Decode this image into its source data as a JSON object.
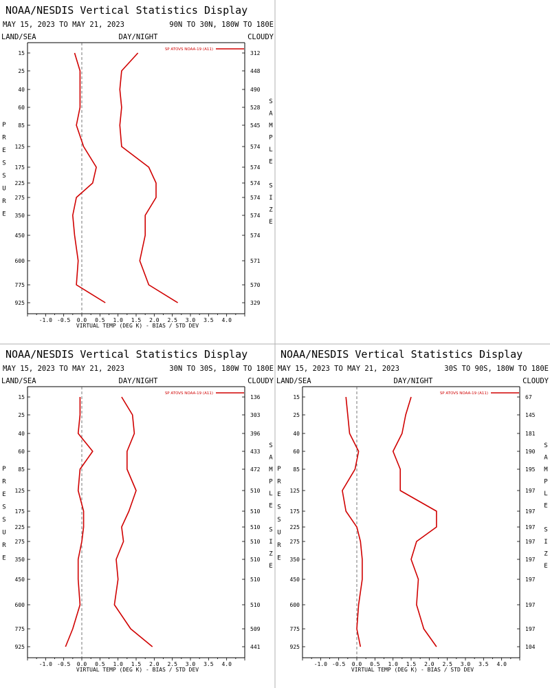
{
  "chart_data": [
    {
      "type": "line",
      "title": "NOAA/NESDIS Vertical Statistics Display",
      "date_range": "MAY 15, 2023 TO MAY 21, 2023",
      "region": "90N TO 30N, 180W TO 180E",
      "left_label": "LAND/SEA",
      "center_label": "DAY/NIGHT",
      "right_label": "CLOUDY",
      "ylabel": "PRESSURE",
      "y2label": "SAMPLE SIZE",
      "xlabel": "VIRTUAL TEMP (DEG K) - BIAS / STD DEV",
      "xlim": [
        -1.5,
        4.5
      ],
      "xticks": [
        "-1.0",
        "-0.5",
        "0.0",
        "0.5",
        "1.0",
        "1.5",
        "2.0",
        "2.5",
        "3.0",
        "3.5",
        "4.0"
      ],
      "pressure_levels": [
        "15",
        "25",
        "40",
        "60",
        "85",
        "125",
        "175",
        "225",
        "275",
        "350",
        "450",
        "600",
        "775",
        "925"
      ],
      "sample_size": [
        "312",
        "448",
        "490",
        "528",
        "545",
        "574",
        "574",
        "574",
        "574",
        "574",
        "574",
        "571",
        "570",
        "329"
      ],
      "legend": "SP ATOVS NOAA-19 (A11)",
      "series": [
        {
          "name": "BIAS",
          "values": [
            -0.2,
            -0.05,
            -0.05,
            -0.05,
            -0.15,
            0.05,
            0.4,
            0.3,
            -0.15,
            -0.25,
            -0.2,
            -0.1,
            -0.15,
            0.65
          ]
        },
        {
          "name": "STD DEV",
          "values": [
            1.55,
            1.1,
            1.05,
            1.1,
            1.05,
            1.1,
            1.85,
            2.05,
            2.05,
            1.75,
            1.75,
            1.6,
            1.85,
            2.65
          ]
        }
      ]
    },
    {
      "type": "line",
      "title": "NOAA/NESDIS Vertical Statistics Display",
      "date_range": "MAY 15, 2023 TO MAY 21, 2023",
      "region": "30N TO 30S, 180W TO 180E",
      "left_label": "LAND/SEA",
      "center_label": "DAY/NIGHT",
      "right_label": "CLOUDY",
      "ylabel": "PRESSURE",
      "y2label": "SAMPLE SIZE",
      "xlabel": "VIRTUAL TEMP (DEG K) - BIAS / STD DEV",
      "xlim": [
        -1.5,
        4.5
      ],
      "xticks": [
        "-1.0",
        "-0.5",
        "0.0",
        "0.5",
        "1.0",
        "1.5",
        "2.0",
        "2.5",
        "3.0",
        "3.5",
        "4.0"
      ],
      "pressure_levels": [
        "15",
        "25",
        "40",
        "60",
        "85",
        "125",
        "175",
        "225",
        "275",
        "350",
        "450",
        "600",
        "775",
        "925"
      ],
      "sample_size": [
        "136",
        "303",
        "396",
        "433",
        "472",
        "510",
        "510",
        "510",
        "510",
        "510",
        "510",
        "510",
        "509",
        "441"
      ],
      "legend": "SP ATOVS NOAA-19 (A11)",
      "series": [
        {
          "name": "BIAS",
          "values": [
            -0.05,
            -0.05,
            -0.1,
            0.3,
            -0.05,
            -0.1,
            0.05,
            0.05,
            0.0,
            -0.1,
            -0.1,
            -0.05,
            -0.25,
            -0.45
          ]
        },
        {
          "name": "STD DEV",
          "values": [
            1.1,
            1.4,
            1.45,
            1.25,
            1.25,
            1.5,
            1.3,
            1.1,
            1.15,
            0.95,
            1.0,
            0.9,
            1.35,
            1.95
          ]
        }
      ]
    },
    {
      "type": "line",
      "title": "NOAA/NESDIS Vertical Statistics Display",
      "date_range": "MAY 15, 2023 TO MAY 21, 2023",
      "region": "30S TO 90S, 180W TO 180E",
      "left_label": "LAND/SEA",
      "center_label": "DAY/NIGHT",
      "right_label": "CLOUDY",
      "ylabel": "PRESSURE",
      "y2label": "SAMPLE SIZE",
      "xlabel": "VIRTUAL TEMP (DEG K) - BIAS / STD DEV",
      "xlim": [
        -1.5,
        4.5
      ],
      "xticks": [
        "-1.0",
        "-0.5",
        "0.0",
        "0.5",
        "1.0",
        "1.5",
        "2.0",
        "2.5",
        "3.0",
        "3.5",
        "4.0"
      ],
      "pressure_levels": [
        "15",
        "25",
        "40",
        "60",
        "85",
        "125",
        "175",
        "225",
        "275",
        "350",
        "450",
        "600",
        "775",
        "925"
      ],
      "sample_size": [
        "67",
        "145",
        "181",
        "190",
        "195",
        "197",
        "197",
        "197",
        "197",
        "197",
        "197",
        "197",
        "197",
        "104"
      ],
      "legend": "SP ATOVS NOAA-19 (A11)",
      "series": [
        {
          "name": "BIAS",
          "values": [
            -0.3,
            -0.25,
            -0.2,
            0.05,
            -0.05,
            -0.4,
            -0.3,
            0.0,
            0.1,
            0.15,
            0.15,
            0.05,
            0.0,
            0.1
          ]
        },
        {
          "name": "STD DEV",
          "values": [
            1.5,
            1.35,
            1.25,
            1.0,
            1.2,
            1.2,
            2.2,
            2.2,
            1.65,
            1.5,
            1.7,
            1.65,
            1.85,
            2.2
          ]
        }
      ]
    }
  ],
  "colors": {
    "series": "#d00000",
    "axis": "#000000",
    "divider": "#b0b0b0"
  }
}
